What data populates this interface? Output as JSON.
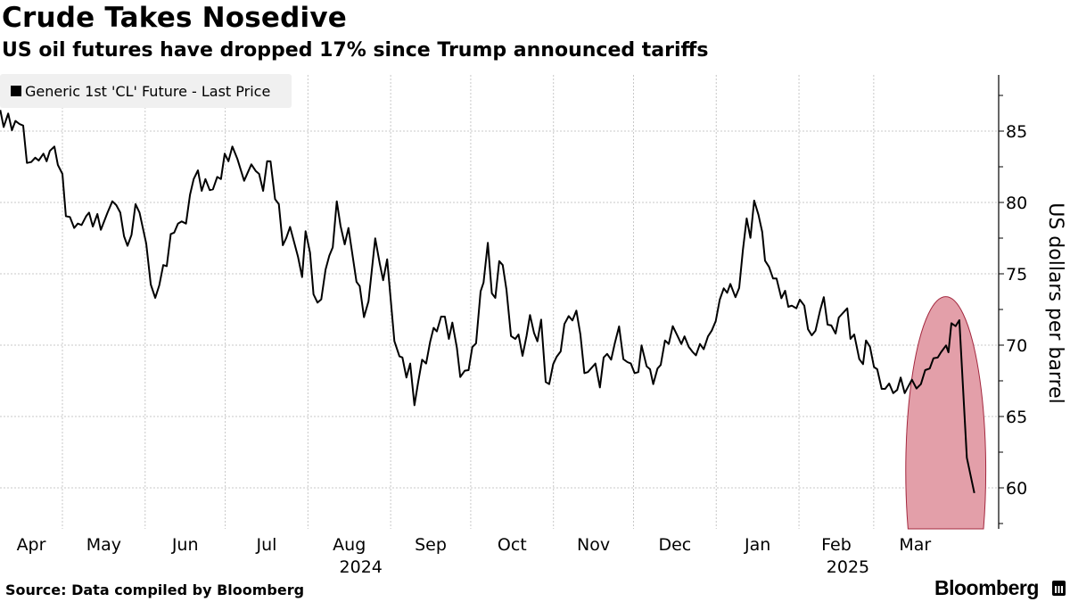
{
  "header": {
    "title": "Crude Takes Nosedive",
    "subtitle": "US oil futures have dropped 17% since Trump announced tariffs"
  },
  "footer": {
    "source": "Source: Data compiled by Bloomberg",
    "brand": "Bloomberg"
  },
  "colors": {
    "line": "#000000",
    "highlight_fill": "#e39fa9",
    "highlight_stroke": "#a3283f",
    "legend_bg": "#f0f0f0"
  },
  "chart_data": {
    "type": "line",
    "title": "Crude Takes Nosedive",
    "subtitle": "US oil futures have dropped 17% since Trump announced tariffs",
    "legend": {
      "label": "Generic 1st 'CL' Future - Last Price",
      "placement": "top-left"
    },
    "ylabel": "US dollars per barrel",
    "xlabel": "",
    "x_units": "days since 2024-04-01",
    "ylim": [
      57.1,
      88.9
    ],
    "xlim": [
      6.7,
      372.5
    ],
    "yticks": [
      60,
      65,
      70,
      75,
      80,
      85
    ],
    "grid": true,
    "months": [
      {
        "label": "Apr",
        "start": 0,
        "year": ""
      },
      {
        "label": "May",
        "start": 30,
        "year": ""
      },
      {
        "label": "Jun",
        "start": 61,
        "year": ""
      },
      {
        "label": "Jul",
        "start": 91,
        "year": ""
      },
      {
        "label": "Aug",
        "start": 122,
        "year": "2024"
      },
      {
        "label": "Sep",
        "start": 153,
        "year": ""
      },
      {
        "label": "Oct",
        "start": 183,
        "year": ""
      },
      {
        "label": "Nov",
        "start": 214,
        "year": ""
      },
      {
        "label": "Dec",
        "start": 244,
        "year": ""
      },
      {
        "label": "Jan",
        "start": 275,
        "year": ""
      },
      {
        "label": "Feb",
        "start": 306,
        "year": "2025"
      },
      {
        "label": "Mar",
        "start": 334,
        "year": ""
      }
    ],
    "annotation": {
      "type": "highlight-ellipse",
      "x_range": [
        346,
        376
      ],
      "y_range": [
        49,
        73.4
      ]
    },
    "series": [
      {
        "name": "Generic 1st 'CL' Future - Last Price",
        "x": [
          6.7,
          8.0,
          9.7,
          11.1,
          12.4,
          13.9,
          15.3,
          16.7,
          18.3,
          19.8,
          21.1,
          22.9,
          24.1,
          25.3,
          27.0,
          28.3,
          30.0,
          31.3,
          32.8,
          34.4,
          35.8,
          37.2,
          38.9,
          40.0,
          41.4,
          43.1,
          44.4,
          46.9,
          48.7,
          50.2,
          51.7,
          53.1,
          54.4,
          55.9,
          57.4,
          58.9,
          61.4,
          63.1,
          64.8,
          66.3,
          67.8,
          69.1,
          70.6,
          71.9,
          73.3,
          74.7,
          76.3,
          77.8,
          79.2,
          80.8,
          82.2,
          83.6,
          85.2,
          86.4,
          88.0,
          89.4,
          90.8,
          92.2,
          93.7,
          95.6,
          98.1,
          100.8,
          102.4,
          103.7,
          105.2,
          106.7,
          108.0,
          109.7,
          111.1,
          112.6,
          113.9,
          115.3,
          118.3,
          119.8,
          121.1,
          122.8,
          124.1,
          125.6,
          127.0,
          128.6,
          130.0,
          131.3,
          132.8,
          134.2,
          135.8,
          137.2,
          140.2,
          141.4,
          143.0,
          144.7,
          147.2,
          148.9,
          150.2,
          151.7,
          154.4,
          156.3,
          157.4,
          158.9,
          160.3,
          161.9,
          163.3,
          164.8,
          166.3,
          167.8,
          169.1,
          170.3,
          171.9,
          173.3,
          174.8,
          176.1,
          177.8,
          179.1,
          180.8,
          182.2,
          183.6,
          185.0,
          186.7,
          187.8,
          189.4,
          190.9,
          192.2,
          193.7,
          195.0,
          196.4,
          198.1,
          199.7,
          200.9,
          202.4,
          203.9,
          205.2,
          206.7,
          208.0,
          209.4,
          211.1,
          212.4,
          213.9,
          215.2,
          216.7,
          218.1,
          219.7,
          221.1,
          222.6,
          224.1,
          225.6,
          226.9,
          229.7,
          231.4,
          232.8,
          234.1,
          235.6,
          237.0,
          238.6,
          240.2,
          241.7,
          243.0,
          244.4,
          245.8,
          247.0,
          248.9,
          250.2,
          251.4,
          253.0,
          254.2,
          255.8,
          257.2,
          258.7,
          260.3,
          261.9,
          263.1,
          264.7,
          266.1,
          267.4,
          268.9,
          270.3,
          271.9,
          273.3,
          274.8,
          276.3,
          277.8,
          279.1,
          280.3,
          282.2,
          283.6,
          285.0,
          286.4,
          287.8,
          289.2,
          290.8,
          292.2,
          293.3,
          294.8,
          296.3,
          297.6,
          299.4,
          300.8,
          302.0,
          303.3,
          305.0,
          306.3,
          308.0,
          309.4,
          310.8,
          312.2,
          313.9,
          315.3,
          316.7,
          318.1,
          319.7,
          320.9,
          324.1,
          325.3,
          326.7,
          328.6,
          330.0,
          331.1,
          332.6,
          334.1,
          335.3,
          337.0,
          338.3,
          339.8,
          341.3,
          342.8,
          344.1,
          345.6,
          348.3,
          350.0,
          351.7,
          353.3,
          355.0,
          356.4,
          358.0,
          359.2,
          361.1,
          362.0,
          363.1,
          364.7,
          366.1,
          368.9,
          371.7
        ],
        "y": [
          86.48,
          85.29,
          86.23,
          85.06,
          85.71,
          85.5,
          85.39,
          82.77,
          82.83,
          83.14,
          82.94,
          83.42,
          82.89,
          83.61,
          83.92,
          82.63,
          82.0,
          79.04,
          78.98,
          78.21,
          78.52,
          78.42,
          79.04,
          79.29,
          78.31,
          79.19,
          78.08,
          79.29,
          80.08,
          79.81,
          79.29,
          77.63,
          76.96,
          77.73,
          79.88,
          79.29,
          77.11,
          74.25,
          73.31,
          74.19,
          75.61,
          75.54,
          77.79,
          77.89,
          78.52,
          78.67,
          78.52,
          80.54,
          81.64,
          82.25,
          80.81,
          81.64,
          80.86,
          80.92,
          81.79,
          81.64,
          83.42,
          82.89,
          83.92,
          83.04,
          81.52,
          82.67,
          82.21,
          82.0,
          80.81,
          82.89,
          82.88,
          80.23,
          79.88,
          77.0,
          77.52,
          78.29,
          76.17,
          74.77,
          77.98,
          76.48,
          73.56,
          72.98,
          73.21,
          75.29,
          76.27,
          76.86,
          80.08,
          78.36,
          77.06,
          78.21,
          74.44,
          74.14,
          71.96,
          73.08,
          77.48,
          75.71,
          74.55,
          76.02,
          70.28,
          69.21,
          69.14,
          67.73,
          68.71,
          65.79,
          67.42,
          68.98,
          68.71,
          70.23,
          71.21,
          70.96,
          72.0,
          72.0,
          70.44,
          71.58,
          69.81,
          67.77,
          68.21,
          68.25,
          69.86,
          70.13,
          73.77,
          74.39,
          77.17,
          73.63,
          73.31,
          75.89,
          75.61,
          73.88,
          70.64,
          70.44,
          70.75,
          69.25,
          70.64,
          72.11,
          70.86,
          70.27,
          71.79,
          67.42,
          67.27,
          68.67,
          69.19,
          69.56,
          71.48,
          72.04,
          71.73,
          72.42,
          70.75,
          68.04,
          68.11,
          68.71,
          67.04,
          69.14,
          69.39,
          68.98,
          70.13,
          71.31,
          69.02,
          68.81,
          68.71,
          68.04,
          68.11,
          69.98,
          68.52,
          68.31,
          67.27,
          68.36,
          68.61,
          70.33,
          70.08,
          71.33,
          70.71,
          70.08,
          70.61,
          69.88,
          69.54,
          69.29,
          70.08,
          69.71,
          70.61,
          71.02,
          71.69,
          73.19,
          73.98,
          73.67,
          74.29,
          73.36,
          74.02,
          76.69,
          78.88,
          77.52,
          80.13,
          79.14,
          77.94,
          75.92,
          75.48,
          74.67,
          74.67,
          73.29,
          73.81,
          72.69,
          72.77,
          72.58,
          73.19,
          72.77,
          71.11,
          70.69,
          71.02,
          72.42,
          73.36,
          71.44,
          71.38,
          70.81,
          71.94,
          72.58,
          70.44,
          70.75,
          69.02,
          68.67,
          70.33,
          69.88,
          68.46,
          68.31,
          66.94,
          66.94,
          67.31,
          66.64,
          66.86,
          67.73,
          66.64,
          67.58,
          66.96,
          67.27,
          68.25,
          68.36,
          69.08,
          69.13,
          69.5,
          69.98,
          69.5,
          71.54,
          71.33,
          71.75,
          62.11,
          59.64
        ]
      }
    ]
  }
}
